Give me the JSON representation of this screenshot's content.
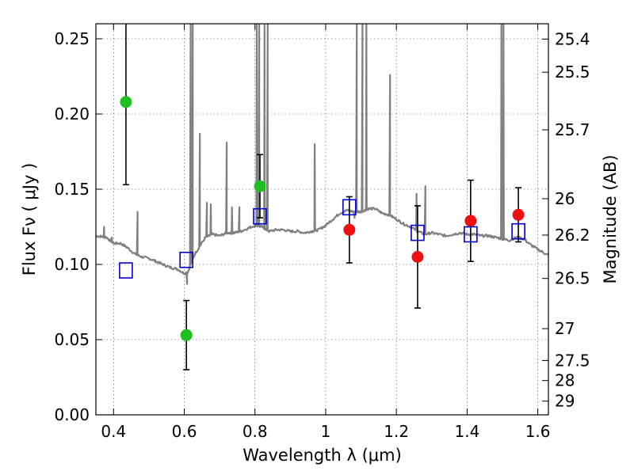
{
  "chart_data": {
    "type": "scatter",
    "xlabel": "Wavelength  λ (μm)",
    "ylabel": "Flux  Fν  ( μJy )",
    "ylabel2": "Magnitude (AB)",
    "xlim": [
      0.35,
      1.63
    ],
    "ylim": [
      0.0,
      0.26
    ],
    "grid": true,
    "xticks": [
      0.4,
      0.6,
      0.8,
      1.0,
      1.2,
      1.4,
      1.6
    ],
    "xtick_labels": [
      "0.4",
      "0.6",
      "0.8",
      "1",
      "1.2",
      "1.4",
      "1.6"
    ],
    "yticks": [
      0.0,
      0.05,
      0.1,
      0.15,
      0.2,
      0.25
    ],
    "ytick_labels": [
      "0.00",
      "0.05",
      "0.10",
      "0.15",
      "0.20",
      "0.25"
    ],
    "mag_ticks": [
      {
        "label": "25.4",
        "flux": 0.2498
      },
      {
        "label": "25.5",
        "flux": 0.2278
      },
      {
        "label": "25.7",
        "flux": 0.1895
      },
      {
        "label": "26",
        "flux": 0.1437
      },
      {
        "label": "26.2",
        "flux": 0.1195
      },
      {
        "label": "26.5",
        "flux": 0.0907
      },
      {
        "label": "27",
        "flux": 0.0573
      },
      {
        "label": "27.5",
        "flux": 0.0361
      },
      {
        "label": "28",
        "flux": 0.0228
      },
      {
        "label": "29",
        "flux": 0.0091
      }
    ],
    "colors": {
      "green": "#1fbf1f",
      "red": "#ee1111",
      "model_box": "#0000cc",
      "spectrum": "#808080"
    },
    "series": [
      {
        "marker": "green-circle",
        "points": [
          {
            "x": 0.435,
            "y": 0.208,
            "err": 0.055
          },
          {
            "x": 0.606,
            "y": 0.053,
            "err": 0.023
          },
          {
            "x": 0.814,
            "y": 0.152,
            "err": 0.021
          }
        ]
      },
      {
        "marker": "red-circle",
        "points": [
          {
            "x": 1.067,
            "y": 0.123,
            "err": 0.022
          },
          {
            "x": 1.26,
            "y": 0.105,
            "err": 0.034
          },
          {
            "x": 1.41,
            "y": 0.129,
            "err": 0.027
          },
          {
            "x": 1.545,
            "y": 0.133,
            "err": 0.018
          }
        ]
      },
      {
        "marker": "blue-open-square",
        "points": [
          {
            "x": 0.435,
            "y": 0.096
          },
          {
            "x": 0.606,
            "y": 0.103
          },
          {
            "x": 0.814,
            "y": 0.132
          },
          {
            "x": 1.067,
            "y": 0.138
          },
          {
            "x": 1.26,
            "y": 0.121
          },
          {
            "x": 1.41,
            "y": 0.12
          },
          {
            "x": 1.545,
            "y": 0.122
          }
        ]
      },
      {
        "marker": "gray-line",
        "continuum": [
          [
            0.35,
            0.119
          ],
          [
            0.38,
            0.118
          ],
          [
            0.4,
            0.114
          ],
          [
            0.42,
            0.114
          ],
          [
            0.44,
            0.111
          ],
          [
            0.46,
            0.107
          ],
          [
            0.48,
            0.105
          ],
          [
            0.5,
            0.104
          ],
          [
            0.52,
            0.102
          ],
          [
            0.54,
            0.1
          ],
          [
            0.56,
            0.098
          ],
          [
            0.58,
            0.097
          ],
          [
            0.6,
            0.094
          ],
          [
            0.61,
            0.095
          ],
          [
            0.63,
            0.107
          ],
          [
            0.66,
            0.118
          ],
          [
            0.68,
            0.12
          ],
          [
            0.7,
            0.119
          ],
          [
            0.72,
            0.121
          ],
          [
            0.74,
            0.121
          ],
          [
            0.76,
            0.122
          ],
          [
            0.78,
            0.124
          ],
          [
            0.8,
            0.126
          ],
          [
            0.82,
            0.125
          ],
          [
            0.84,
            0.122
          ],
          [
            0.86,
            0.123
          ],
          [
            0.88,
            0.123
          ],
          [
            0.9,
            0.122
          ],
          [
            0.92,
            0.122
          ],
          [
            0.94,
            0.121
          ],
          [
            0.96,
            0.122
          ],
          [
            0.98,
            0.123
          ],
          [
            1.0,
            0.126
          ],
          [
            1.02,
            0.13
          ],
          [
            1.04,
            0.134
          ],
          [
            1.06,
            0.136
          ],
          [
            1.08,
            0.135
          ],
          [
            1.1,
            0.135
          ],
          [
            1.12,
            0.137
          ],
          [
            1.14,
            0.137
          ],
          [
            1.16,
            0.134
          ],
          [
            1.18,
            0.133
          ],
          [
            1.2,
            0.13
          ],
          [
            1.22,
            0.127
          ],
          [
            1.24,
            0.125
          ],
          [
            1.26,
            0.122
          ],
          [
            1.28,
            0.12
          ],
          [
            1.3,
            0.121
          ],
          [
            1.32,
            0.12
          ],
          [
            1.34,
            0.119
          ],
          [
            1.36,
            0.12
          ],
          [
            1.38,
            0.121
          ],
          [
            1.4,
            0.12
          ],
          [
            1.42,
            0.12
          ],
          [
            1.44,
            0.119
          ],
          [
            1.46,
            0.119
          ],
          [
            1.48,
            0.118
          ],
          [
            1.5,
            0.117
          ],
          [
            1.52,
            0.116
          ],
          [
            1.54,
            0.118
          ],
          [
            1.56,
            0.117
          ],
          [
            1.58,
            0.113
          ],
          [
            1.6,
            0.11
          ],
          [
            1.63,
            0.106
          ]
        ],
        "peaks": [
          [
            0.373,
            0.125
          ],
          [
            0.395,
            0.118
          ],
          [
            0.468,
            0.135
          ],
          [
            0.608,
            0.087
          ],
          [
            0.618,
            0.262
          ],
          [
            0.624,
            0.262
          ],
          [
            0.644,
            0.187
          ],
          [
            0.664,
            0.141
          ],
          [
            0.675,
            0.14
          ],
          [
            0.72,
            0.181
          ],
          [
            0.735,
            0.138
          ],
          [
            0.756,
            0.138
          ],
          [
            0.805,
            0.262
          ],
          [
            0.812,
            0.262
          ],
          [
            0.827,
            0.262
          ],
          [
            0.836,
            0.262
          ],
          [
            0.969,
            0.18
          ],
          [
            1.082,
            0.131
          ],
          [
            1.088,
            0.262
          ],
          [
            1.104,
            0.262
          ],
          [
            1.115,
            0.262
          ],
          [
            1.182,
            0.226
          ],
          [
            1.257,
            0.147
          ],
          [
            1.282,
            0.152
          ],
          [
            1.497,
            0.262
          ],
          [
            1.503,
            0.262
          ]
        ]
      }
    ]
  }
}
